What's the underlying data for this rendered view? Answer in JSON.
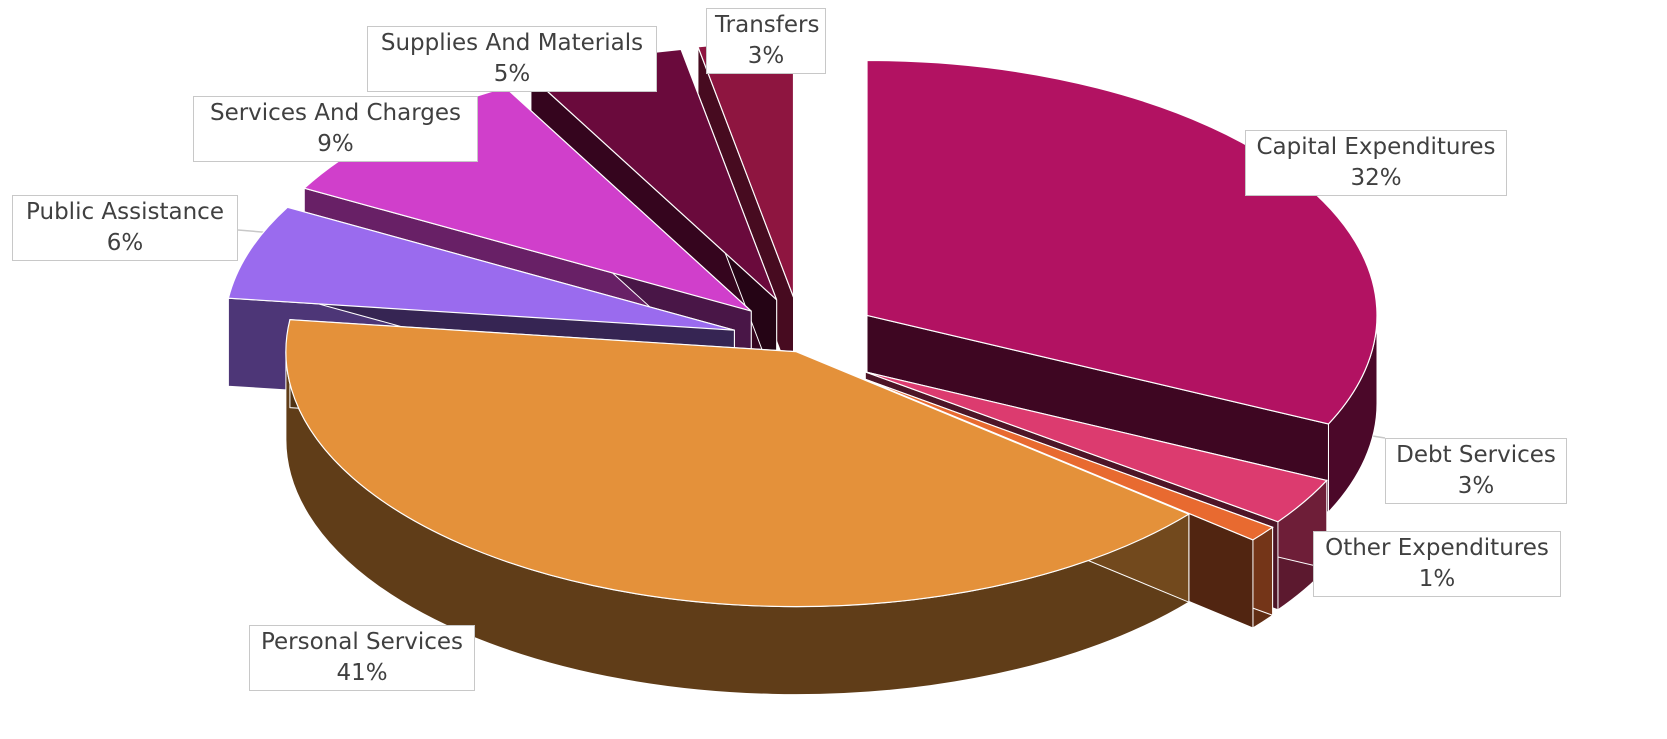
{
  "chart_data": {
    "type": "pie",
    "style": "3d-exploded",
    "title": "",
    "slices": [
      {
        "name": "Capital Expenditures",
        "value": 32,
        "label": "32%",
        "color": "#b21262"
      },
      {
        "name": "Debt Services",
        "value": 3,
        "label": "3%",
        "color": "#dc3b6f"
      },
      {
        "name": "Other Expenditures",
        "value": 1,
        "label": "1%",
        "color": "#e86a30"
      },
      {
        "name": "Personal Services",
        "value": 41,
        "label": "41%",
        "color": "#e4913a"
      },
      {
        "name": "Public Assistance",
        "value": 6,
        "label": "6%",
        "color": "#9a6bee"
      },
      {
        "name": "Services And Charges",
        "value": 9,
        "label": "9%",
        "color": "#d03fcb"
      },
      {
        "name": "Supplies And Materials",
        "value": 5,
        "label": "5%",
        "color": "#6a0a3c"
      },
      {
        "name": "Transfers",
        "value": 3,
        "label": "3%",
        "color": "#8e1540"
      }
    ]
  }
}
